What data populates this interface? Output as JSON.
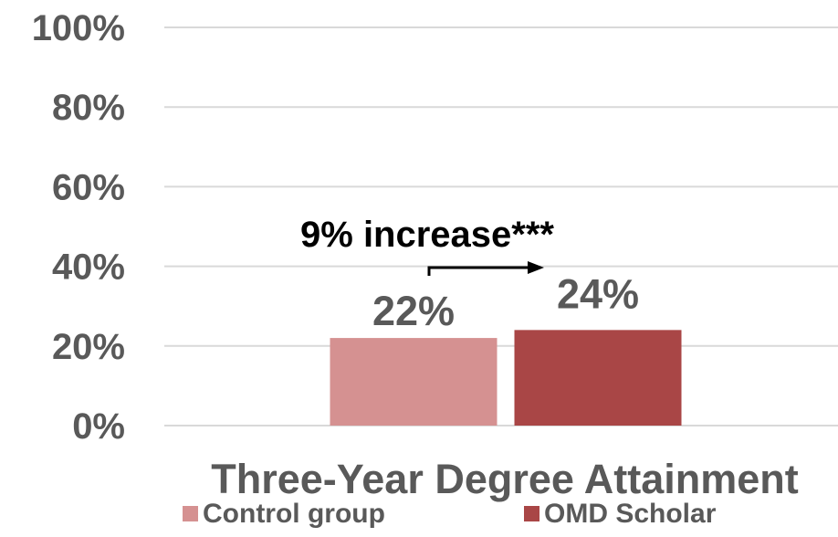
{
  "chart_data": {
    "type": "bar",
    "categories": [
      "Three-Year Degree Attainment"
    ],
    "series": [
      {
        "name": "Control group",
        "values": [
          22
        ],
        "color": "#d59191"
      },
      {
        "name": "OMD Scholar",
        "values": [
          24
        ],
        "color": "#a94646"
      }
    ],
    "data_labels": [
      "22%",
      "24%"
    ],
    "ylim": [
      0,
      100
    ],
    "yticks": [
      0,
      20,
      40,
      60,
      80,
      100
    ],
    "ytick_labels": [
      "0%",
      "20%",
      "40%",
      "60%",
      "80%",
      "100%"
    ],
    "xlabel": "Three-Year Degree Attainment",
    "ylabel": "",
    "title": "",
    "annotation": "9% increase***",
    "grid": true,
    "legend_position": "bottom",
    "colors": {
      "text": "#595959",
      "annotation": "#000000",
      "gridline": "#d9d9d9"
    }
  }
}
